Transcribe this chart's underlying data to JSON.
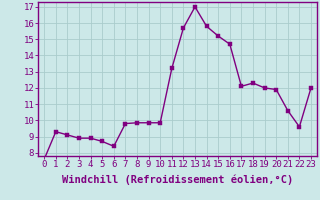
{
  "x": [
    0,
    1,
    2,
    3,
    4,
    5,
    6,
    7,
    8,
    9,
    10,
    11,
    12,
    13,
    14,
    15,
    16,
    17,
    18,
    19,
    20,
    21,
    22,
    23
  ],
  "y": [
    7.6,
    9.3,
    9.1,
    8.9,
    8.9,
    8.7,
    8.4,
    9.8,
    9.85,
    9.85,
    9.85,
    13.2,
    15.7,
    17.0,
    15.8,
    15.2,
    14.7,
    12.1,
    12.3,
    12.0,
    11.9,
    10.6,
    9.6,
    12.0
  ],
  "xlabel": "Windchill (Refroidissement éolien,°C)",
  "ylim": [
    7.8,
    17.3
  ],
  "xlim": [
    -0.5,
    23.5
  ],
  "yticks": [
    8,
    9,
    10,
    11,
    12,
    13,
    14,
    15,
    16,
    17
  ],
  "xticks": [
    0,
    1,
    2,
    3,
    4,
    5,
    6,
    7,
    8,
    9,
    10,
    11,
    12,
    13,
    14,
    15,
    16,
    17,
    18,
    19,
    20,
    21,
    22,
    23
  ],
  "line_color": "#800080",
  "marker_color": "#800080",
  "bg_color": "#cce8e8",
  "grid_color": "#aacccc",
  "axis_color": "#800080",
  "tick_color": "#800080",
  "label_color": "#800080",
  "font_size": 6.5,
  "xlabel_fontsize": 7.5,
  "marker_size": 2.5,
  "line_width": 1.0
}
